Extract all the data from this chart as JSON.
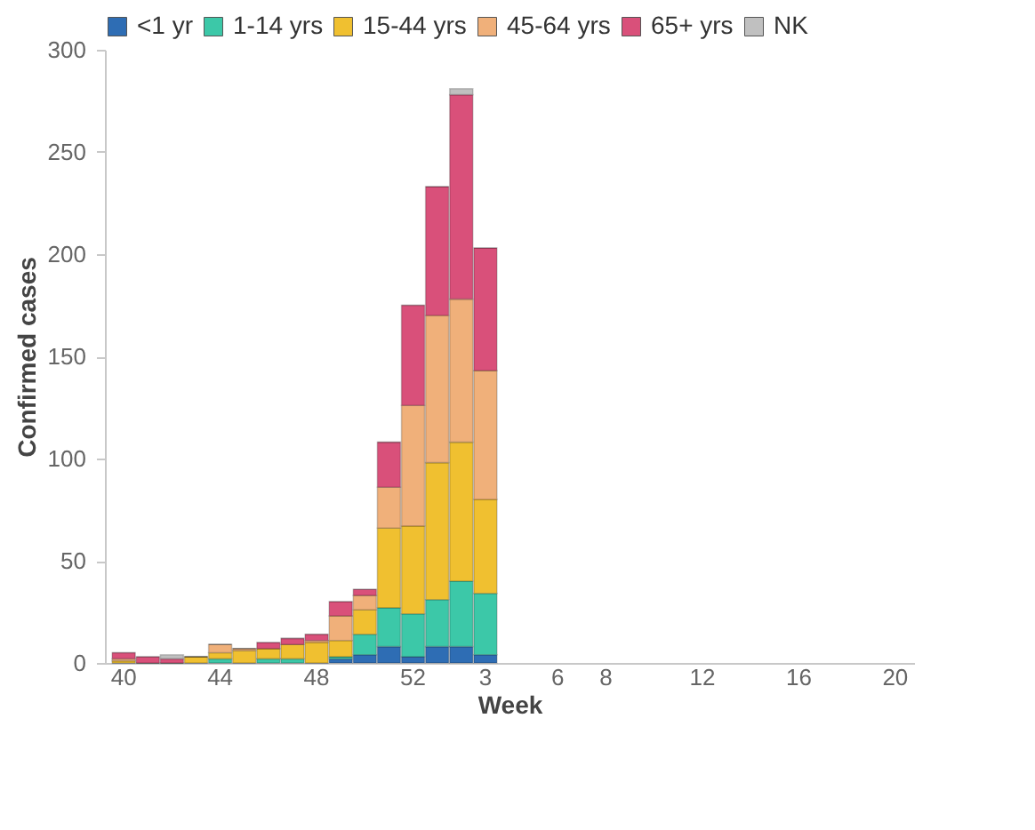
{
  "chart_data": {
    "type": "bar",
    "stacked": true,
    "xlabel": "Week",
    "ylabel": "Confirmed cases",
    "legend": "top",
    "grid": false,
    "categories": [
      "40",
      null,
      null,
      null,
      "44",
      null,
      null,
      null,
      "48",
      null,
      null,
      null,
      "52",
      null,
      null,
      "3",
      null,
      null,
      "6",
      null,
      "8",
      null,
      null,
      null,
      "12",
      null,
      null,
      null,
      "16",
      null,
      null,
      null,
      "20"
    ],
    "ylim": [
      0,
      300
    ],
    "yticks": [
      0,
      50,
      100,
      150,
      200,
      250,
      300
    ],
    "series": [
      {
        "name": "<1 yr",
        "color": "#2e6db4",
        "values": [
          0,
          0,
          0,
          0,
          0,
          0,
          0,
          0,
          0,
          2,
          4,
          8,
          3,
          8,
          8,
          4,
          null,
          null,
          null,
          null,
          null,
          null,
          null,
          null,
          null,
          null,
          null,
          null,
          null,
          null,
          null,
          null,
          null
        ]
      },
      {
        "name": "1-14 yrs",
        "color": "#3cc8a8",
        "values": [
          0,
          0,
          0,
          0,
          2,
          0,
          2,
          2,
          0,
          1,
          10,
          19,
          21,
          23,
          32,
          30,
          null,
          null,
          null,
          null,
          null,
          null,
          null,
          null,
          null,
          null,
          null,
          null,
          null,
          null,
          null,
          null,
          null
        ]
      },
      {
        "name": "15-44 yrs",
        "color": "#f0c030",
        "values": [
          1,
          0,
          0,
          3,
          3,
          6,
          5,
          7,
          10,
          8,
          12,
          39,
          43,
          67,
          68,
          46,
          null,
          null,
          null,
          null,
          null,
          null,
          null,
          null,
          null,
          null,
          null,
          null,
          null,
          null,
          null,
          null,
          null
        ]
      },
      {
        "name": "45-64 yrs",
        "color": "#f0b07a",
        "values": [
          1,
          0,
          0,
          0,
          4,
          1,
          0,
          0,
          1,
          12,
          7,
          20,
          59,
          72,
          70,
          63,
          null,
          null,
          null,
          null,
          null,
          null,
          null,
          null,
          null,
          null,
          null,
          null,
          null,
          null,
          null,
          null,
          null
        ]
      },
      {
        "name": "65+ yrs",
        "color": "#d9507a",
        "values": [
          3,
          3,
          2,
          0,
          0,
          0,
          3,
          3,
          3,
          7,
          3,
          22,
          49,
          63,
          100,
          60,
          null,
          null,
          null,
          null,
          null,
          null,
          null,
          null,
          null,
          null,
          null,
          null,
          null,
          null,
          null,
          null,
          null
        ]
      },
      {
        "name": "NK",
        "color": "#c0c0c0",
        "values": [
          0,
          0,
          2,
          0,
          0,
          0,
          0,
          0,
          0,
          0,
          0,
          0,
          0,
          0,
          3,
          0,
          null,
          null,
          null,
          null,
          null,
          null,
          null,
          null,
          null,
          null,
          null,
          null,
          null,
          null,
          null,
          null,
          null
        ]
      }
    ]
  }
}
